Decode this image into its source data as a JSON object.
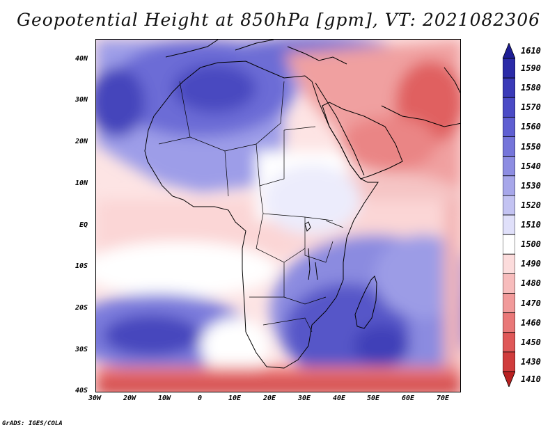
{
  "map": {
    "title": "Geopotential Height at 850hPa [gpm], VT: 2021082306",
    "variable": "Geopotential Height",
    "level": "850hPa",
    "units": "gpm",
    "valid_time": "2021082306",
    "extent": {
      "lon_min": -30,
      "lon_max": 75,
      "lat_min": -40,
      "lat_max": 45
    },
    "lon_labels": [
      "30W",
      "20W",
      "10W",
      "0",
      "10E",
      "20E",
      "30E",
      "40E",
      "50E",
      "60E",
      "70E"
    ],
    "lat_labels": [
      "40N",
      "30N",
      "20N",
      "10N",
      "EQ",
      "10S",
      "20S",
      "30S",
      "40S"
    ],
    "colorbar": {
      "labels": [
        "1610",
        "1590",
        "1580",
        "1570",
        "1560",
        "1550",
        "1540",
        "1530",
        "1520",
        "1510",
        "1500",
        "1490",
        "1480",
        "1470",
        "1460",
        "1450",
        "1430",
        "1410"
      ],
      "colors": [
        "#1e1e96",
        "#2b2ba8",
        "#3a3ab8",
        "#4b4bc6",
        "#5f5fd2",
        "#7575da",
        "#8d8de2",
        "#a7a7ea",
        "#c3c3f2",
        "#e0e0fa",
        "#ffffff",
        "#fcdcdc",
        "#f7bcbc",
        "#f19a9a",
        "#e97878",
        "#df5858",
        "#d03c3c",
        "#b82020"
      ]
    },
    "credit": "GrADS: IGES/COLA"
  }
}
